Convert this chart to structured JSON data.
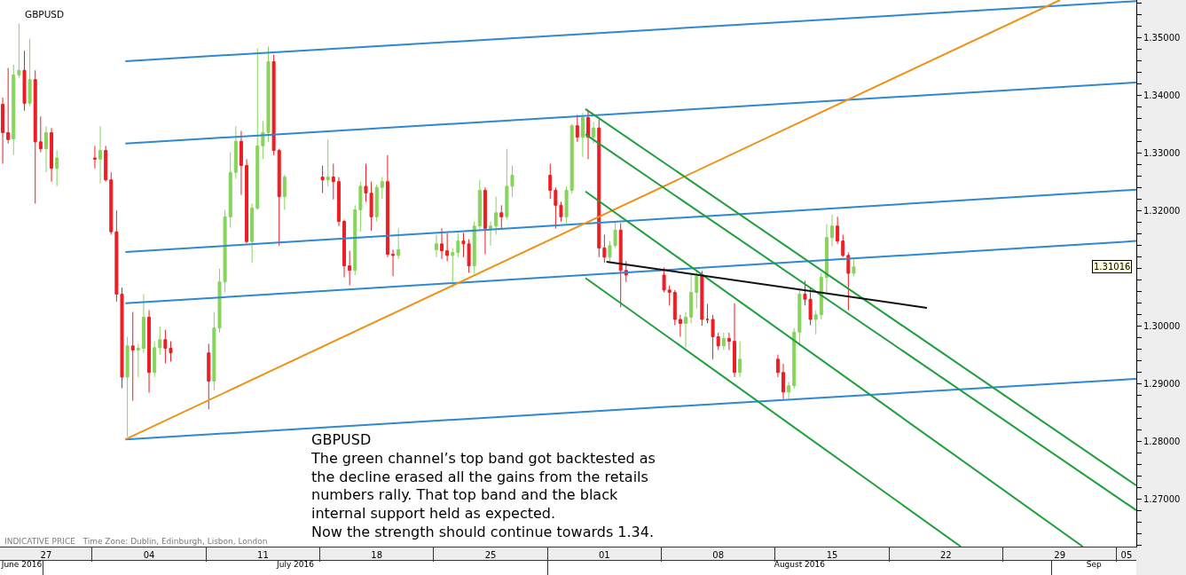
{
  "chart_data": {
    "type": "candlestick",
    "title": "GBPUSD",
    "x": [
      "2016-06-28T12:00",
      "2016-06-28T20:00",
      "2016-06-29T04:00",
      "2016-06-29T12:00",
      "2016-06-29T20:00",
      "2016-06-30T04:00",
      "2016-06-30T12:00",
      "2016-06-30T20:00",
      "2016-07-01T04:00",
      "2016-07-01T12:00",
      "2016-07-01T20:00",
      "2016-07-04T04:00",
      "2016-07-04T12:00",
      "2016-07-04T20:00",
      "2016-07-05T04:00",
      "2016-07-05T12:00",
      "2016-07-05T20:00",
      "2016-07-06T04:00",
      "2016-07-06T12:00",
      "2016-07-06T20:00",
      "2016-07-07T04:00",
      "2016-07-07T12:00",
      "2016-07-07T20:00",
      "2016-07-08T04:00",
      "2016-07-08T12:00",
      "2016-07-08T20:00",
      "2016-07-11T04:00",
      "2016-07-11T12:00",
      "2016-07-11T20:00",
      "2016-07-12T04:00",
      "2016-07-12T12:00",
      "2016-07-12T20:00",
      "2016-07-13T04:00",
      "2016-07-13T12:00",
      "2016-07-13T20:00",
      "2016-07-14T04:00",
      "2016-07-14T12:00",
      "2016-07-14T20:00",
      "2016-07-15T04:00",
      "2016-07-15T12:00",
      "2016-07-15T20:00",
      "2016-07-18T04:00",
      "2016-07-18T12:00",
      "2016-07-18T20:00",
      "2016-07-19T04:00",
      "2016-07-19T12:00",
      "2016-07-19T20:00",
      "2016-07-20T04:00",
      "2016-07-20T12:00",
      "2016-07-20T20:00",
      "2016-07-21T04:00",
      "2016-07-21T12:00",
      "2016-07-21T20:00",
      "2016-07-22T04:00",
      "2016-07-22T12:00",
      "2016-07-22T20:00",
      "2016-07-25T04:00",
      "2016-07-25T12:00",
      "2016-07-25T20:00",
      "2016-07-26T04:00",
      "2016-07-26T12:00",
      "2016-07-26T20:00",
      "2016-07-27T04:00",
      "2016-07-27T12:00",
      "2016-07-27T20:00",
      "2016-07-28T04:00",
      "2016-07-28T12:00",
      "2016-07-28T20:00",
      "2016-07-29T04:00",
      "2016-07-29T12:00",
      "2016-07-29T20:00",
      "2016-08-01T04:00",
      "2016-08-01T12:00",
      "2016-08-01T20:00",
      "2016-08-02T04:00",
      "2016-08-02T12:00",
      "2016-08-02T20:00",
      "2016-08-03T04:00",
      "2016-08-03T12:00",
      "2016-08-03T20:00",
      "2016-08-04T04:00",
      "2016-08-04T12:00",
      "2016-08-04T20:00",
      "2016-08-05T04:00",
      "2016-08-05T12:00",
      "2016-08-05T20:00",
      "2016-08-08T04:00",
      "2016-08-08T12:00",
      "2016-08-08T20:00",
      "2016-08-09T04:00",
      "2016-08-09T12:00",
      "2016-08-09T20:00",
      "2016-08-10T04:00",
      "2016-08-10T12:00",
      "2016-08-10T20:00",
      "2016-08-11T04:00",
      "2016-08-11T12:00",
      "2016-08-11T20:00",
      "2016-08-12T04:00",
      "2016-08-12T12:00",
      "2016-08-12T20:00",
      "2016-08-15T04:00",
      "2016-08-15T12:00",
      "2016-08-15T20:00",
      "2016-08-16T04:00",
      "2016-08-16T12:00",
      "2016-08-16T20:00",
      "2016-08-17T04:00",
      "2016-08-17T12:00",
      "2016-08-17T20:00",
      "2016-08-18T04:00",
      "2016-08-18T12:00",
      "2016-08-18T20:00",
      "2016-08-19T04:00",
      "2016-08-19T12:00",
      "2016-08-19T20:00"
    ],
    "ohlc": [
      [
        1.3384,
        1.3396,
        1.3281,
        1.3335
      ],
      [
        1.3335,
        1.3447,
        1.3316,
        1.3323
      ],
      [
        1.3324,
        1.3453,
        1.3296,
        1.3435
      ],
      [
        1.3435,
        1.3524,
        1.343,
        1.3443
      ],
      [
        1.3443,
        1.3477,
        1.3373,
        1.3386
      ],
      [
        1.3386,
        1.3498,
        1.3381,
        1.3427
      ],
      [
        1.3427,
        1.3443,
        1.3212,
        1.3319
      ],
      [
        1.3319,
        1.3363,
        1.3301,
        1.3307
      ],
      [
        1.3307,
        1.3346,
        1.3266,
        1.3335
      ],
      [
        1.3335,
        1.3343,
        1.325,
        1.3273
      ],
      [
        1.3273,
        1.3304,
        1.3242,
        1.3291
      ],
      [
        1.3291,
        1.3312,
        1.3273,
        1.3289
      ],
      [
        1.3289,
        1.3346,
        1.3247,
        1.3304
      ],
      [
        1.3304,
        1.3312,
        1.325,
        1.3253
      ],
      [
        1.3253,
        1.3266,
        1.3158,
        1.3163
      ],
      [
        1.3163,
        1.32,
        1.3042,
        1.3055
      ],
      [
        1.3055,
        1.3066,
        1.2892,
        1.2911
      ],
      [
        1.2911,
        1.2981,
        1.2808,
        1.2965
      ],
      [
        1.2965,
        1.3024,
        1.287,
        1.2958
      ],
      [
        1.2958,
        1.2969,
        1.2911,
        1.2961
      ],
      [
        1.2961,
        1.3055,
        1.2953,
        1.3015
      ],
      [
        1.3015,
        1.3027,
        1.2884,
        1.2919
      ],
      [
        1.2919,
        1.2973,
        1.2911,
        1.2962
      ],
      [
        1.2962,
        1.2999,
        1.295,
        1.2976
      ],
      [
        1.2976,
        1.2993,
        1.2935,
        1.2961
      ],
      [
        1.2961,
        1.2973,
        1.2938,
        1.2953
      ],
      [
        1.2953,
        1.2969,
        1.2855,
        1.2904
      ],
      [
        1.2904,
        1.3024,
        1.2888,
        1.2996
      ],
      [
        1.2996,
        1.3099,
        1.2988,
        1.3076
      ],
      [
        1.3076,
        1.3201,
        1.3058,
        1.3189
      ],
      [
        1.3189,
        1.3301,
        1.317,
        1.3266
      ],
      [
        1.3266,
        1.3346,
        1.3255,
        1.332
      ],
      [
        1.332,
        1.3338,
        1.3227,
        1.3278
      ],
      [
        1.3278,
        1.3289,
        1.3143,
        1.3146
      ],
      [
        1.3146,
        1.3212,
        1.3109,
        1.3204
      ],
      [
        1.3204,
        1.3481,
        1.3201,
        1.3312
      ],
      [
        1.3312,
        1.3355,
        1.3289,
        1.3335
      ],
      [
        1.3335,
        1.3484,
        1.3319,
        1.3458
      ],
      [
        1.3458,
        1.347,
        1.3296,
        1.3304
      ],
      [
        1.3304,
        1.3307,
        1.3139,
        1.3224
      ],
      [
        1.3224,
        1.3262,
        1.3201,
        1.3258
      ],
      [
        1.3258,
        1.3278,
        1.323,
        1.3253
      ],
      [
        1.3253,
        1.3323,
        1.3242,
        1.3258
      ],
      [
        1.3258,
        1.3281,
        1.3219,
        1.325
      ],
      [
        1.325,
        1.3258,
        1.3173,
        1.3181
      ],
      [
        1.3181,
        1.3184,
        1.3084,
        1.3104
      ],
      [
        1.3104,
        1.313,
        1.307,
        1.3096
      ],
      [
        1.3096,
        1.3209,
        1.3088,
        1.3201
      ],
      [
        1.3201,
        1.325,
        1.3163,
        1.3242
      ],
      [
        1.3242,
        1.3281,
        1.3215,
        1.323
      ],
      [
        1.323,
        1.325,
        1.3165,
        1.3189
      ],
      [
        1.3189,
        1.3245,
        1.3181,
        1.324
      ],
      [
        1.324,
        1.3258,
        1.322,
        1.325
      ],
      [
        1.325,
        1.3296,
        1.3119,
        1.3124
      ],
      [
        1.3124,
        1.3132,
        1.3086,
        1.3122
      ],
      [
        1.3122,
        1.3169,
        1.3116,
        1.3132
      ],
      [
        1.3132,
        1.3158,
        1.3119,
        1.3142
      ],
      [
        1.3142,
        1.3169,
        1.3116,
        1.313
      ],
      [
        1.313,
        1.3161,
        1.3112,
        1.3122
      ],
      [
        1.3122,
        1.3135,
        1.3066,
        1.3127
      ],
      [
        1.3127,
        1.3161,
        1.3119,
        1.3147
      ],
      [
        1.3147,
        1.3161,
        1.3119,
        1.3142
      ],
      [
        1.3142,
        1.315,
        1.3092,
        1.3104
      ],
      [
        1.3104,
        1.3181,
        1.309,
        1.3173
      ],
      [
        1.3173,
        1.3253,
        1.3168,
        1.3235
      ],
      [
        1.3235,
        1.324,
        1.3124,
        1.3169
      ],
      [
        1.3169,
        1.3181,
        1.3139,
        1.3173
      ],
      [
        1.3173,
        1.3224,
        1.3158,
        1.3196
      ],
      [
        1.3196,
        1.3209,
        1.3169,
        1.3189
      ],
      [
        1.3189,
        1.3307,
        1.3184,
        1.3242
      ],
      [
        1.3242,
        1.3278,
        1.3223,
        1.3261
      ],
      [
        1.3261,
        1.3281,
        1.322,
        1.3235
      ],
      [
        1.3235,
        1.324,
        1.3169,
        1.3209
      ],
      [
        1.3209,
        1.3215,
        1.3181,
        1.3189
      ],
      [
        1.3189,
        1.3242,
        1.3178,
        1.3235
      ],
      [
        1.3235,
        1.335,
        1.323,
        1.3347
      ],
      [
        1.3347,
        1.3366,
        1.3319,
        1.3327
      ],
      [
        1.3327,
        1.3369,
        1.3293,
        1.3361
      ],
      [
        1.3361,
        1.3373,
        1.3289,
        1.3327
      ],
      [
        1.3327,
        1.3353,
        1.3316,
        1.3343
      ],
      [
        1.3343,
        1.3358,
        1.3119,
        1.3135
      ],
      [
        1.3135,
        1.3158,
        1.3109,
        1.3119
      ],
      [
        1.3119,
        1.3147,
        1.3109,
        1.3139
      ],
      [
        1.3139,
        1.3181,
        1.3135,
        1.3166
      ],
      [
        1.3166,
        1.3178,
        1.3032,
        1.3096
      ],
      [
        1.3096,
        1.3112,
        1.3076,
        1.3088
      ],
      [
        1.3088,
        1.3101,
        1.3058,
        1.3062
      ],
      [
        1.3062,
        1.307,
        1.3035,
        1.3058
      ],
      [
        1.3058,
        1.3062,
        1.3001,
        1.3011
      ],
      [
        1.3011,
        1.3019,
        1.2981,
        1.3004
      ],
      [
        1.3004,
        1.3024,
        1.2962,
        1.3015
      ],
      [
        1.3015,
        1.3092,
        1.3004,
        1.3058
      ],
      [
        1.3058,
        1.3096,
        1.303,
        1.3086
      ],
      [
        1.3086,
        1.3095,
        1.3,
        1.3011
      ],
      [
        1.3011,
        1.3038,
        1.3004,
        1.3011
      ],
      [
        1.3011,
        1.3019,
        1.2942,
        1.2981
      ],
      [
        1.2981,
        1.2988,
        1.2958,
        1.2965
      ],
      [
        1.2965,
        1.2988,
        1.2958,
        1.2978
      ],
      [
        1.2978,
        1.2988,
        1.2958,
        1.2973
      ],
      [
        1.2973,
        1.3039,
        1.2911,
        1.2919
      ],
      [
        1.2919,
        1.2973,
        1.2911,
        1.2942
      ],
      [
        1.2942,
        1.295,
        1.2911,
        1.2919
      ],
      [
        1.2919,
        1.2934,
        1.2873,
        1.2885
      ],
      [
        1.2885,
        1.2903,
        1.2873,
        1.2896
      ],
      [
        1.2896,
        1.2996,
        1.2891,
        1.2989
      ],
      [
        1.2989,
        1.3062,
        1.2965,
        1.3055
      ],
      [
        1.3055,
        1.3078,
        1.3035,
        1.3046
      ],
      [
        1.3046,
        1.3066,
        1.3001,
        1.3011
      ],
      [
        1.3011,
        1.3027,
        1.2985,
        1.3019
      ],
      [
        1.3019,
        1.3092,
        1.3011,
        1.3084
      ],
      [
        1.3084,
        1.3176,
        1.3058,
        1.3153
      ],
      [
        1.3153,
        1.3193,
        1.3138,
        1.3173
      ],
      [
        1.3173,
        1.3189,
        1.3142,
        1.3147
      ],
      [
        1.3147,
        1.3158,
        1.3119,
        1.3122
      ],
      [
        1.3122,
        1.3127,
        1.3027,
        1.3091
      ],
      [
        1.3091,
        1.3115,
        1.3086,
        1.3102
      ]
    ],
    "colors": [
      "#ee1d23",
      "#ee1d23",
      "#86d45a",
      "#86d45a",
      "#ee1d23",
      "#86d45a",
      "#ee1d23",
      "#ee1d23",
      "#86d45a",
      "#ee1d23",
      "#86d45a",
      "#ee1d23",
      "#86d45a",
      "#ee1d23",
      "#ee1d23",
      "#ee1d23",
      "#ee1d23",
      "#86d45a",
      "#ee1d23",
      "#86d45a",
      "#86d45a",
      "#ee1d23",
      "#86d45a",
      "#86d45a",
      "#ee1d23",
      "#ee1d23",
      "#ee1d23",
      "#86d45a",
      "#86d45a",
      "#86d45a",
      "#86d45a",
      "#86d45a",
      "#ee1d23",
      "#ee1d23",
      "#86d45a",
      "#86d45a",
      "#86d45a",
      "#86d45a",
      "#ee1d23",
      "#ee1d23",
      "#86d45a",
      "#ee1d23",
      "#86d45a",
      "#ee1d23",
      "#ee1d23",
      "#ee1d23",
      "#ee1d23",
      "#86d45a",
      "#86d45a",
      "#ee1d23",
      "#ee1d23",
      "#86d45a",
      "#86d45a",
      "#ee1d23",
      "#ee1d23",
      "#86d45a",
      "#86d45a",
      "#ee1d23",
      "#ee1d23",
      "#86d45a",
      "#86d45a",
      "#ee1d23",
      "#ee1d23",
      "#86d45a",
      "#86d45a",
      "#ee1d23",
      "#86d45a",
      "#86d45a",
      "#ee1d23",
      "#86d45a",
      "#86d45a",
      "#ee1d23",
      "#ee1d23",
      "#ee1d23",
      "#86d45a",
      "#86d45a",
      "#ee1d23",
      "#86d45a",
      "#ee1d23",
      "#86d45a",
      "#ee1d23",
      "#ee1d23",
      "#86d45a",
      "#86d45a",
      "#ee1d23",
      "#ee1d23",
      "#ee1d23",
      "#ee1d23",
      "#ee1d23",
      "#ee1d23",
      "#86d45a",
      "#86d45a",
      "#86d45a",
      "#ee1d23",
      "#ee1d23",
      "#ee1d23",
      "#ee1d23",
      "#86d45a",
      "#ee1d23",
      "#ee1d23",
      "#86d45a",
      "#ee1d23",
      "#ee1d23",
      "#86d45a",
      "#86d45a",
      "#86d45a",
      "#ee1d23",
      "#ee1d23",
      "#86d45a",
      "#86d45a",
      "#86d45a",
      "#86d45a",
      "#ee1d23",
      "#ee1d23",
      "#ee1d23",
      "#86d45a"
    ],
    "series": [
      {
        "type": "line",
        "color": "#2f88d2",
        "x": [
          "2016-07-06T01:00",
          "2016-09-06T05:00"
        ],
        "values": [
          1.3459,
          1.3563
        ]
      },
      {
        "type": "line",
        "color": "#2f88d2",
        "x": [
          "2016-07-06T01:00",
          "2016-09-06T05:00"
        ],
        "values": [
          1.3316,
          1.3422
        ]
      },
      {
        "type": "line",
        "color": "#2f88d2",
        "x": [
          "2016-07-06T01:00",
          "2016-09-06T05:00"
        ],
        "values": [
          1.3128,
          1.3236
        ]
      },
      {
        "type": "line",
        "color": "#2f88d2",
        "x": [
          "2016-07-06T01:00",
          "2016-09-06T05:00"
        ],
        "values": [
          1.3039,
          1.3147
        ]
      },
      {
        "type": "line",
        "color": "#2f88d2",
        "x": [
          "2016-07-06T01:00",
          "2016-09-06T05:00"
        ],
        "values": [
          1.2803,
          1.2908
        ]
      },
      {
        "type": "line",
        "color": "#ee9216",
        "x": [
          "2016-07-06T01:00",
          "2016-09-01T12:30"
        ],
        "values": [
          1.2803,
          1.3565
        ]
      },
      {
        "type": "line",
        "color": "#1f9e3c",
        "x": [
          "2016-08-03T08:00",
          "2016-09-06T05:00"
        ],
        "values": [
          1.3376,
          1.2723
        ]
      },
      {
        "type": "line",
        "color": "#1f9e3c",
        "x": [
          "2016-08-03T08:00",
          "2016-09-06T05:00"
        ],
        "values": [
          1.3332,
          1.268
        ]
      },
      {
        "type": "line",
        "color": "#1f9e3c",
        "x": [
          "2016-08-03T08:00",
          "2016-09-02T22:00"
        ],
        "values": [
          1.3233,
          1.2617
        ]
      },
      {
        "type": "line",
        "color": "#1f9e3c",
        "x": [
          "2016-08-03T08:00",
          "2016-08-26T10:00"
        ],
        "values": [
          1.3083,
          1.2617
        ]
      },
      {
        "type": "line",
        "color": "#111111",
        "x": [
          "2016-08-04T15:00",
          "2016-08-24T08:00"
        ],
        "values": [
          1.3111,
          1.3031
        ]
      }
    ],
    "annotations": [
      "GBPUSD\nThe green channel’s top band got backtested as\nthe decline erased all the gains from the retails\nnumbers rally. That top band and the black\ninternal support held as expected.\nNow the strength should continue towards 1.34.",
      "INDICATIVE PRICE   Time Zone: Dublin, Edinburgh, Lisbon, London",
      "1.31016"
    ],
    "xlim": [
      "2016-06-28T08:00",
      "2016-09-06T05:00"
    ],
    "xticks": [
      {
        "value": "2016-07-01T04:00",
        "label": "27"
      },
      {
        "value": "2016-07-04",
        "label": null
      },
      {
        "value": "2016-07-07T12:00",
        "label": "04"
      },
      {
        "value": "2016-07-11",
        "label": null
      },
      {
        "value": "2016-07-14T12:00",
        "label": "11"
      },
      {
        "value": "2016-07-18",
        "label": null
      },
      {
        "value": "2016-07-21T12:00",
        "label": "18"
      },
      {
        "value": "2016-07-25",
        "label": null
      },
      {
        "value": "2016-07-28T12:00",
        "label": "25"
      },
      {
        "value": "2016-08-01",
        "label": null
      },
      {
        "value": "2016-08-04T12:00",
        "label": "01"
      },
      {
        "value": "2016-08-08",
        "label": null
      },
      {
        "value": "2016-08-11T12:00",
        "label": "08"
      },
      {
        "value": "2016-08-15",
        "label": null
      },
      {
        "value": "2016-08-18T12:00",
        "label": "15"
      },
      {
        "value": "2016-08-22",
        "label": null
      },
      {
        "value": "2016-08-25T12:00",
        "label": "22"
      },
      {
        "value": "2016-08-29",
        "label": null
      },
      {
        "value": "2016-09-01T12:00",
        "label": "29"
      },
      {
        "value": "2016-09-05",
        "label": null
      },
      {
        "value": "2016-09-05T14:30",
        "label": "05"
      }
    ],
    "x2lim": [
      "2016-06-28T08:00",
      "2016-09-06T05:00"
    ],
    "x2ticks": [
      {
        "value": "2016-06-29T16:00",
        "label": "June 2016"
      },
      {
        "value": "2016-07-16T12:00",
        "label": "July 2016"
      },
      {
        "value": "2016-08-16T12:00",
        "label": "August 2016"
      },
      {
        "value": "2016-09-03T14:30",
        "label": "Sep"
      }
    ],
    "ylim": [
      1.2617,
      1.3565
    ],
    "yticks": [
      {
        "value": 1.262,
        "label": null
      },
      {
        "value": 1.264,
        "label": null
      },
      {
        "value": 1.266,
        "label": null
      },
      {
        "value": 1.268,
        "label": null
      },
      {
        "value": 1.27,
        "label": "1.27000"
      },
      {
        "value": 1.272,
        "label": null
      },
      {
        "value": 1.274,
        "label": null
      },
      {
        "value": 1.276,
        "label": null
      },
      {
        "value": 1.278,
        "label": null
      },
      {
        "value": 1.28,
        "label": "1.28000"
      },
      {
        "value": 1.282,
        "label": null
      },
      {
        "value": 1.284,
        "label": null
      },
      {
        "value": 1.286,
        "label": null
      },
      {
        "value": 1.288,
        "label": null
      },
      {
        "value": 1.29,
        "label": "1.29000"
      },
      {
        "value": 1.292,
        "label": null
      },
      {
        "value": 1.294,
        "label": null
      },
      {
        "value": 1.296,
        "label": null
      },
      {
        "value": 1.298,
        "label": null
      },
      {
        "value": 1.3,
        "label": "1.30000"
      },
      {
        "value": 1.302,
        "label": null
      },
      {
        "value": 1.304,
        "label": null
      },
      {
        "value": 1.306,
        "label": null
      },
      {
        "value": 1.308,
        "label": null
      },
      {
        "value": 1.31,
        "label": null
      },
      {
        "value": 1.312,
        "label": null
      },
      {
        "value": 1.314,
        "label": null
      },
      {
        "value": 1.316,
        "label": null
      },
      {
        "value": 1.318,
        "label": null
      },
      {
        "value": 1.32,
        "label": "1.32000"
      },
      {
        "value": 1.322,
        "label": null
      },
      {
        "value": 1.324,
        "label": null
      },
      {
        "value": 1.326,
        "label": null
      },
      {
        "value": 1.328,
        "label": null
      },
      {
        "value": 1.33,
        "label": "1.33000"
      },
      {
        "value": 1.332,
        "label": null
      },
      {
        "value": 1.334,
        "label": null
      },
      {
        "value": 1.336,
        "label": null
      },
      {
        "value": 1.338,
        "label": null
      },
      {
        "value": 1.34,
        "label": "1.34000"
      },
      {
        "value": 1.342,
        "label": null
      },
      {
        "value": 1.344,
        "label": null
      },
      {
        "value": 1.346,
        "label": null
      },
      {
        "value": 1.348,
        "label": null
      },
      {
        "value": 1.35,
        "label": "1.35000"
      },
      {
        "value": 1.352,
        "label": null
      },
      {
        "value": 1.354,
        "label": null
      },
      {
        "value": 1.356,
        "label": null
      }
    ]
  }
}
